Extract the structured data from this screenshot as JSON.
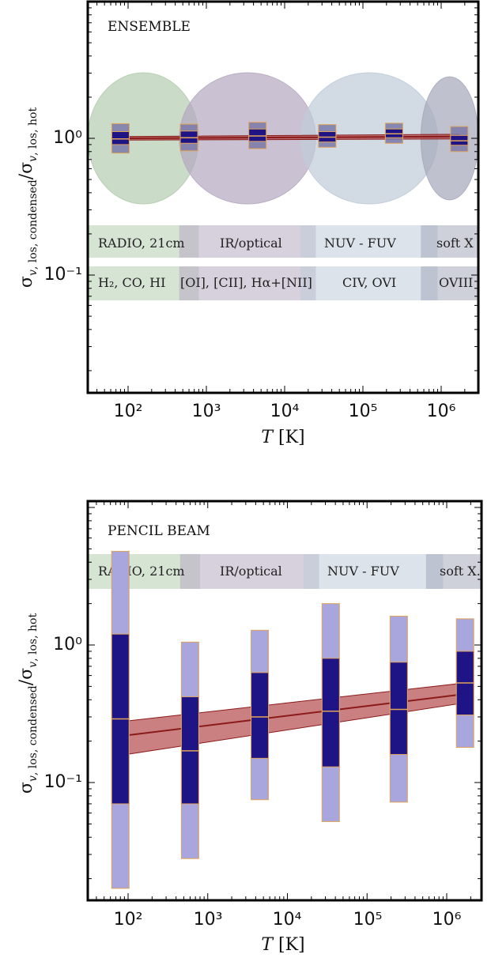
{
  "colors": {
    "box_dark": "#1e1486",
    "box_light": "#a8a6dc",
    "box_edge": "#e0a35a",
    "fit_line": "#8b1a1a",
    "fit_band": "#b44a4a",
    "radio": "#b5cdb1",
    "ir": "#b6a9c1",
    "uv": "#c0ccd8",
    "xray": "#a6aabb"
  },
  "bands": {
    "radio_label": "RADIO, 21cm",
    "ir_label": "IR/optical",
    "uv_label": "NUV - FUV",
    "xray_label": "soft X",
    "xray_label_top": "soft X",
    "xray_label_bottom": "soft X.",
    "radio_lines": "H₂, CO, HI",
    "ir_lines": "[OI], [CII], Hα+[NII]",
    "uv_lines": "CIV, OVI",
    "xray_lines": "OVIII"
  },
  "chart_data": [
    {
      "type": "box",
      "title": "ENSEMBLE",
      "xlabel": "T [K]",
      "ylabel": "σ v, los, condensed / σ v, los, hot",
      "xscale": "log",
      "yscale": "log",
      "xlim": [
        30,
        3000000
      ],
      "ylim": [
        0.01,
        10
      ],
      "x_ticks": [
        "10²",
        "10³",
        "10⁴",
        "10⁵",
        "10⁶"
      ],
      "y_ticks": [
        "10⁰",
        "10⁻¹"
      ],
      "boxes": [
        {
          "x": 80,
          "whisker_low": 0.78,
          "q1": 0.9,
          "median": 0.99,
          "q3": 1.12,
          "whisker_high": 1.28
        },
        {
          "x": 600,
          "whisker_low": 0.81,
          "q1": 0.92,
          "median": 1.01,
          "q3": 1.13,
          "whisker_high": 1.27
        },
        {
          "x": 4500,
          "whisker_low": 0.84,
          "q1": 0.95,
          "median": 1.04,
          "q3": 1.17,
          "whisker_high": 1.31
        },
        {
          "x": 35000,
          "whisker_low": 0.86,
          "q1": 0.94,
          "median": 1.02,
          "q3": 1.12,
          "whisker_high": 1.26
        },
        {
          "x": 250000,
          "whisker_low": 0.92,
          "q1": 1.01,
          "median": 1.08,
          "q3": 1.17,
          "whisker_high": 1.29
        },
        {
          "x": 1700000,
          "whisker_low": 0.8,
          "q1": 0.89,
          "median": 0.96,
          "q3": 1.05,
          "whisker_high": 1.22
        }
      ],
      "fit": {
        "x": [
          80,
          1700000
        ],
        "y": [
          1.0,
          1.03
        ],
        "band_low": [
          0.97,
          0.99
        ],
        "band_high": [
          1.03,
          1.07
        ]
      },
      "band_regions": [
        {
          "name": "radio",
          "x_start": 30,
          "x_end": 800,
          "x_center": 180,
          "y_half_dex": 0.48
        },
        {
          "name": "ir",
          "x_start": 450,
          "x_end": 25000,
          "x_center": 4000,
          "y_half_dex": 0.48
        },
        {
          "name": "uv",
          "x_start": 16000,
          "x_end": 900000,
          "x_center": 100000,
          "y_half_dex": 0.48
        },
        {
          "name": "xray",
          "x_start": 550000,
          "x_end": 3000000,
          "x_center": 1300000,
          "y_half_dex": 0.45
        }
      ]
    },
    {
      "type": "box",
      "title": "PENCIL BEAM",
      "xlabel": "T [K]",
      "ylabel": "σ v, los, condensed / σ v, los, hot",
      "xscale": "log",
      "yscale": "log",
      "xlim": [
        30,
        3000000
      ],
      "ylim": [
        0.0105,
        7.5
      ],
      "x_ticks": [
        "10²",
        "10³",
        "10⁴",
        "10⁵",
        "10⁶"
      ],
      "y_ticks": [
        "10⁰",
        "10⁻¹"
      ],
      "boxes": [
        {
          "x": 80,
          "whisker_low": 0.017,
          "q1": 0.07,
          "median": 0.29,
          "q3": 1.2,
          "whisker_high": 4.8
        },
        {
          "x": 600,
          "whisker_low": 0.028,
          "q1": 0.07,
          "median": 0.17,
          "q3": 0.42,
          "whisker_high": 1.05
        },
        {
          "x": 4500,
          "whisker_low": 0.075,
          "q1": 0.15,
          "median": 0.3,
          "q3": 0.63,
          "whisker_high": 1.28
        },
        {
          "x": 35000,
          "whisker_low": 0.052,
          "q1": 0.13,
          "median": 0.33,
          "q3": 0.8,
          "whisker_high": 2.0
        },
        {
          "x": 250000,
          "whisker_low": 0.072,
          "q1": 0.16,
          "median": 0.34,
          "q3": 0.75,
          "whisker_high": 1.62
        },
        {
          "x": 1700000,
          "whisker_low": 0.18,
          "q1": 0.31,
          "median": 0.53,
          "q3": 0.9,
          "whisker_high": 1.55
        }
      ],
      "fit": {
        "x": [
          95,
          1700000
        ],
        "y": [
          0.22,
          0.44
        ],
        "band_low": [
          0.16,
          0.38
        ],
        "band_high": [
          0.28,
          0.53
        ]
      },
      "band_regions": [
        {
          "name": "radio",
          "x_start": 30,
          "x_end": 800
        },
        {
          "name": "ir",
          "x_start": 450,
          "x_end": 25000
        },
        {
          "name": "uv",
          "x_start": 16000,
          "x_end": 900000
        },
        {
          "name": "xray",
          "x_start": 550000,
          "x_end": 3000000
        }
      ]
    }
  ]
}
